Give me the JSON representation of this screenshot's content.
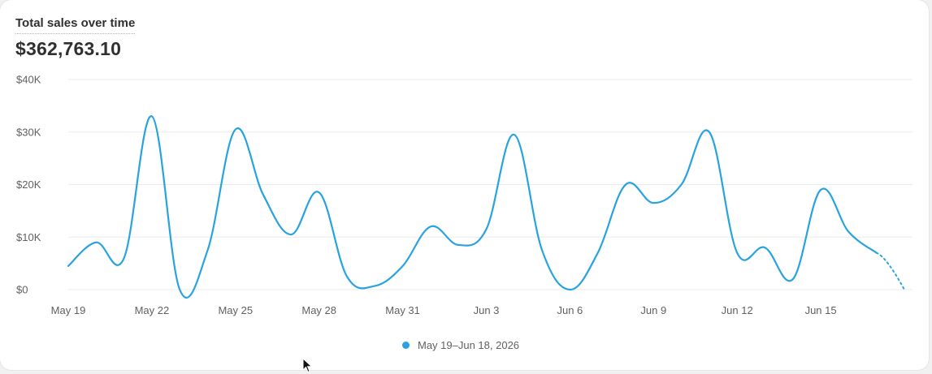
{
  "header": {
    "title": "Total sales over time",
    "total": "$362,763.10"
  },
  "legend": {
    "label": "May 19–Jun 18, 2026",
    "color": "#29a3e0"
  },
  "chart_data": {
    "type": "line",
    "x": [
      "May 19",
      "May 20",
      "May 21",
      "May 22",
      "May 23",
      "May 24",
      "May 25",
      "May 26",
      "May 27",
      "May 28",
      "May 29",
      "May 30",
      "May 31",
      "Jun 1",
      "Jun 2",
      "Jun 3",
      "Jun 4",
      "Jun 5",
      "Jun 6",
      "Jun 7",
      "Jun 8",
      "Jun 9",
      "Jun 10",
      "Jun 11",
      "Jun 12",
      "Jun 13",
      "Jun 14",
      "Jun 15",
      "Jun 16",
      "Jun 17",
      "Jun 18"
    ],
    "x_tick_labels": [
      "May 19",
      "May 22",
      "May 25",
      "May 28",
      "May 31",
      "Jun 3",
      "Jun 6",
      "Jun 9",
      "Jun 12",
      "Jun 15"
    ],
    "y_tick_labels": [
      "$0",
      "$10K",
      "$20K",
      "$30K",
      "$40K"
    ],
    "y_ticks": [
      0,
      10000,
      20000,
      30000,
      40000
    ],
    "ylim": [
      0,
      40000
    ],
    "series": [
      {
        "name": "May 19–Jun 18, 2026",
        "color": "#29a3e0",
        "values": [
          4500,
          9000,
          6000,
          33000,
          0,
          7500,
          30500,
          18000,
          10500,
          18500,
          2500,
          700,
          4500,
          12000,
          8500,
          11500,
          29500,
          7500,
          0,
          7000,
          20000,
          16500,
          20000,
          30000,
          7000,
          8000,
          2000,
          19000,
          11000,
          7000,
          0
        ],
        "incomplete_last_point": true
      }
    ],
    "grid": true,
    "legend_position": "bottom-center"
  }
}
